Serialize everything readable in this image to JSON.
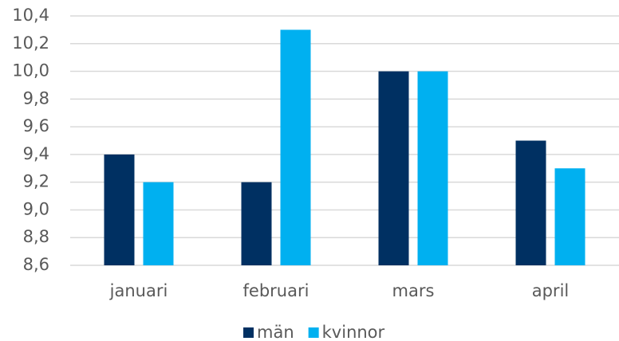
{
  "chart_data": {
    "type": "bar",
    "categories": [
      "januari",
      "februari",
      "mars",
      "april"
    ],
    "series": [
      {
        "name": "män",
        "color": "#003062",
        "values": [
          9.4,
          9.2,
          10.0,
          9.5
        ]
      },
      {
        "name": "kvinnor",
        "color": "#00b0f0",
        "values": [
          9.2,
          10.3,
          10.0,
          9.3
        ]
      }
    ],
    "ylim": [
      8.6,
      10.4
    ],
    "yticks": [
      {
        "value": 8.6,
        "label": "8,6"
      },
      {
        "value": 8.8,
        "label": "8,8"
      },
      {
        "value": 9.0,
        "label": "9,0"
      },
      {
        "value": 9.2,
        "label": "9,2"
      },
      {
        "value": 9.4,
        "label": "9,4"
      },
      {
        "value": 9.6,
        "label": "9,6"
      },
      {
        "value": 9.8,
        "label": "9,8"
      },
      {
        "value": 10.0,
        "label": "10,0"
      },
      {
        "value": 10.2,
        "label": "10,2"
      },
      {
        "value": 10.4,
        "label": "10,4"
      }
    ],
    "grid": true,
    "legend": "bottom"
  }
}
